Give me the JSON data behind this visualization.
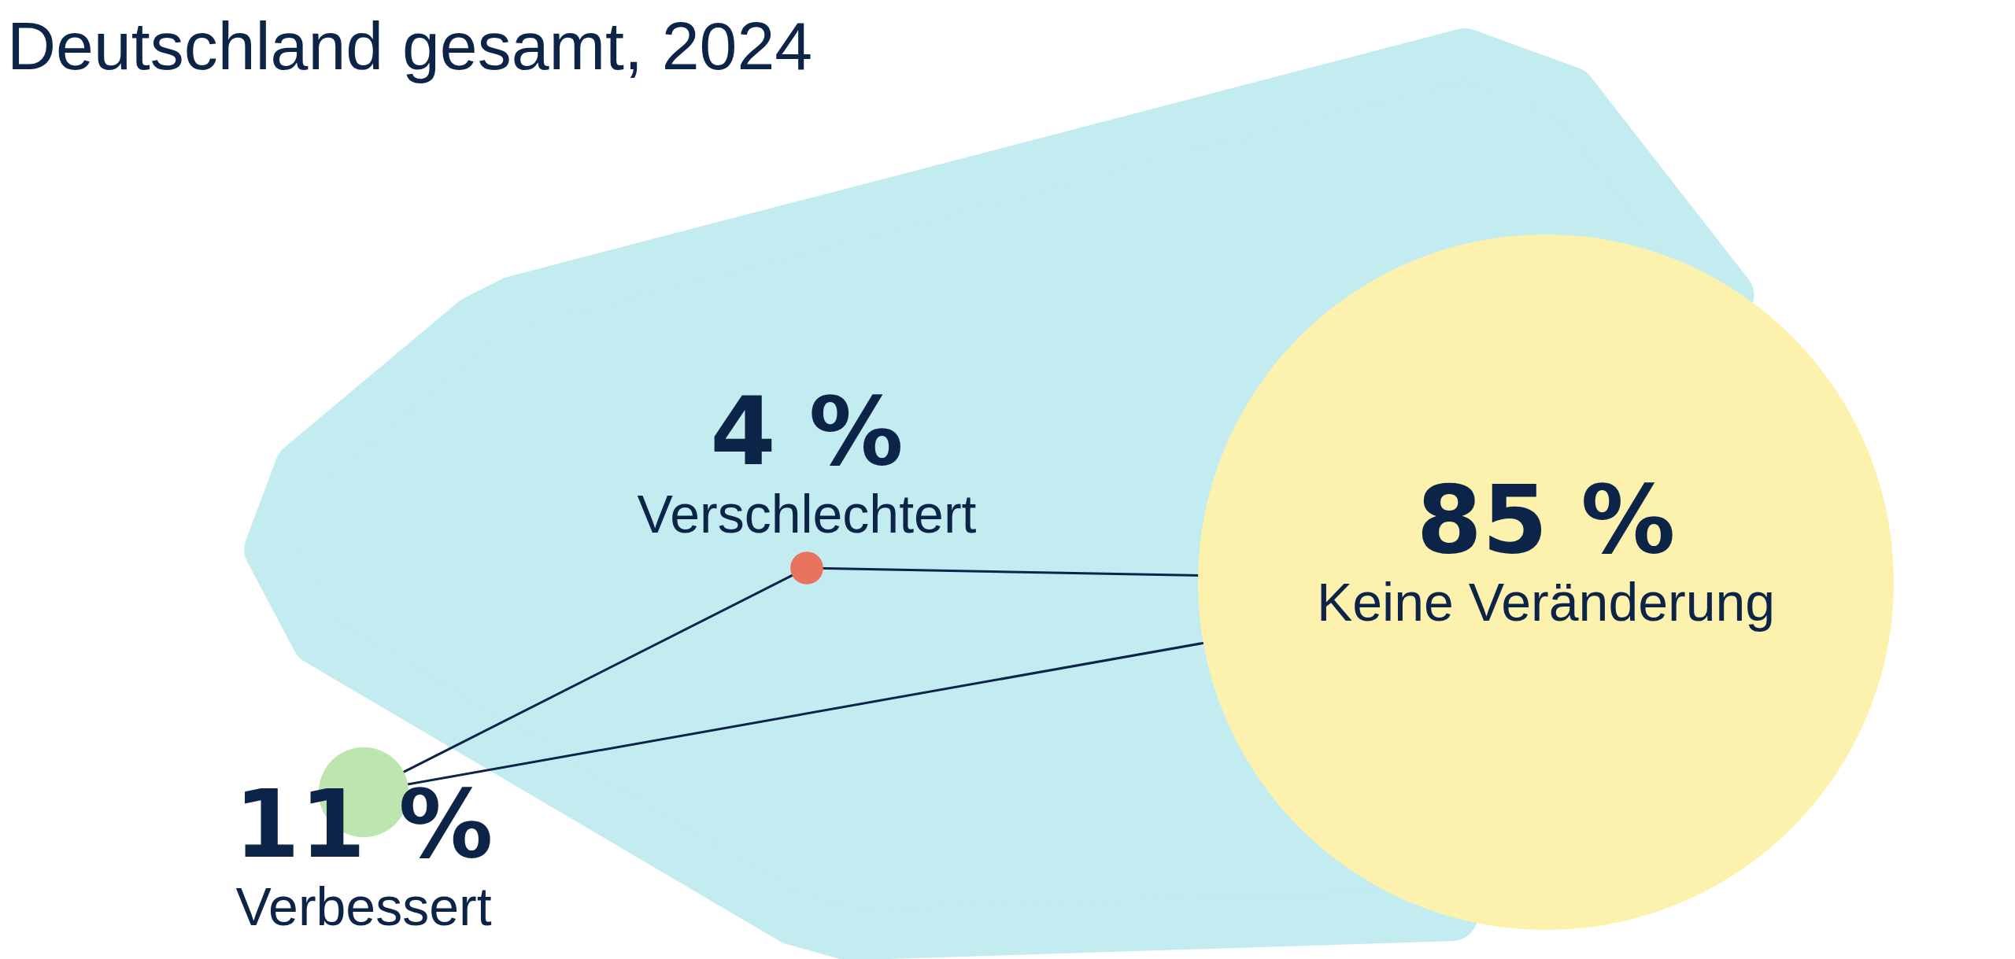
{
  "chart_data": {
    "type": "other",
    "title": "Deutschland gesamt, 2024",
    "categories": [
      "Verbessert",
      "Verschlechtert",
      "Keine Veränderung"
    ],
    "values": [
      11,
      4,
      85
    ],
    "value_labels": [
      "11 %",
      "4 %",
      "85 %"
    ],
    "colors": [
      "#bde5b0",
      "#e8735f",
      "#fdf2ad"
    ]
  }
}
